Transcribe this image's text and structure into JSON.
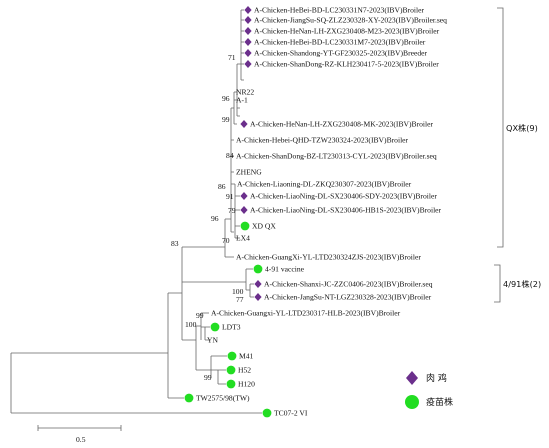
{
  "scale_bar": {
    "label": "0.5"
  },
  "groups": [
    {
      "label": "QX株(9)"
    },
    {
      "label": "4/91株(2)"
    }
  ],
  "legend": {
    "items": [
      {
        "label": "肉 鸡",
        "marker": "diamond",
        "color": "#6b2f8c"
      },
      {
        "label": "疫苗株",
        "marker": "circle",
        "color": "#22dd22"
      }
    ]
  },
  "colors": {
    "broiler": "#6b2f8c",
    "vaccine": "#22dd22",
    "branch": "#666666"
  },
  "taxa": [
    {
      "label": "A-Chicken-HeBei-BD-LC230331N7-2023(IBV)Broiler",
      "marker": "diamond"
    },
    {
      "label": "A-Chicken-JiangSu-SQ-ZLZ230328-XY-2023(IBV)Broiler.seq",
      "marker": "diamond"
    },
    {
      "label": "A-Chicken-HeNan-LH-ZXG230408-M23-2023(IBV)Broiler",
      "marker": "diamond"
    },
    {
      "label": "A-Chicken-HeBei-BD-LC230331M7-2023(IBV)Broiler",
      "marker": "diamond"
    },
    {
      "label": "A-Chicken-Shandong-YT-GF230325-2023(IBV)Breeder",
      "marker": "diamond"
    },
    {
      "label": "A-Chicken-ShanDong-RZ-KLH230417-5-2023(IBV)Broiler",
      "marker": "diamond"
    },
    {
      "label": "NR22",
      "marker": "none"
    },
    {
      "label": "A-1",
      "marker": "none"
    },
    {
      "label": "A-Chicken-HeNan-LH-ZXG230408-MK-2023(IBV)Broiler",
      "marker": "diamond"
    },
    {
      "label": "A-Chicken-Hebei-QHD-TZW230324-2023(IBV)Broiler",
      "marker": "none"
    },
    {
      "label": "A-Chicken-ShanDong-BZ-LT230313-CYL-2023(IBV)Broiler.seq",
      "marker": "none"
    },
    {
      "label": "ZHENG",
      "marker": "none"
    },
    {
      "label": "A-Chicken-Liaoning-DL-ZKQ230307-2023(IBV)Broiler",
      "marker": "none"
    },
    {
      "label": "A-Chicken-LiaoNing-DL-SX230406-SDY-2023(IBV)Broiler",
      "marker": "diamond"
    },
    {
      "label": "A-Chicken-LiaoNing-DL-SX230406-HB1S-2023(IBV)Broiler",
      "marker": "diamond"
    },
    {
      "label": "XD QX",
      "marker": "circle"
    },
    {
      "label": "LX4",
      "marker": "none"
    },
    {
      "label": "A-Chicken-GuangXi-YL-LTD230324ZJS-2023(IBV)Broiler",
      "marker": "none"
    },
    {
      "label": "4-91 vaccine",
      "marker": "circle"
    },
    {
      "label": "A-Chicken-Shanxi-JC-ZZC0406-2023(IBV)Broiler.seq",
      "marker": "diamond"
    },
    {
      "label": "A-Chicken-JangSu-NT-LGZ230328-2023(IBV)Broiler",
      "marker": "diamond"
    },
    {
      "label": "A-Chicken-Guangxi-YL-LTD230317-HLB-2023(IBV)Broiler",
      "marker": "none"
    },
    {
      "label": "LDT3",
      "marker": "circle"
    },
    {
      "label": "YN",
      "marker": "none"
    },
    {
      "label": "M41",
      "marker": "circle"
    },
    {
      "label": "H52",
      "marker": "circle"
    },
    {
      "label": "H120",
      "marker": "circle"
    },
    {
      "label": "TW2575/98(TW)",
      "marker": "circle"
    },
    {
      "label": "TC07-2 VI",
      "marker": "circle"
    }
  ],
  "bootstrap": [
    {
      "value": "71"
    },
    {
      "value": "96"
    },
    {
      "value": "99"
    },
    {
      "value": "84"
    },
    {
      "value": "86"
    },
    {
      "value": "91"
    },
    {
      "value": "79"
    },
    {
      "value": "70"
    },
    {
      "value": "96"
    },
    {
      "value": "83"
    },
    {
      "value": "100"
    },
    {
      "value": "77"
    },
    {
      "value": "99"
    },
    {
      "value": "100"
    },
    {
      "value": "99"
    }
  ]
}
